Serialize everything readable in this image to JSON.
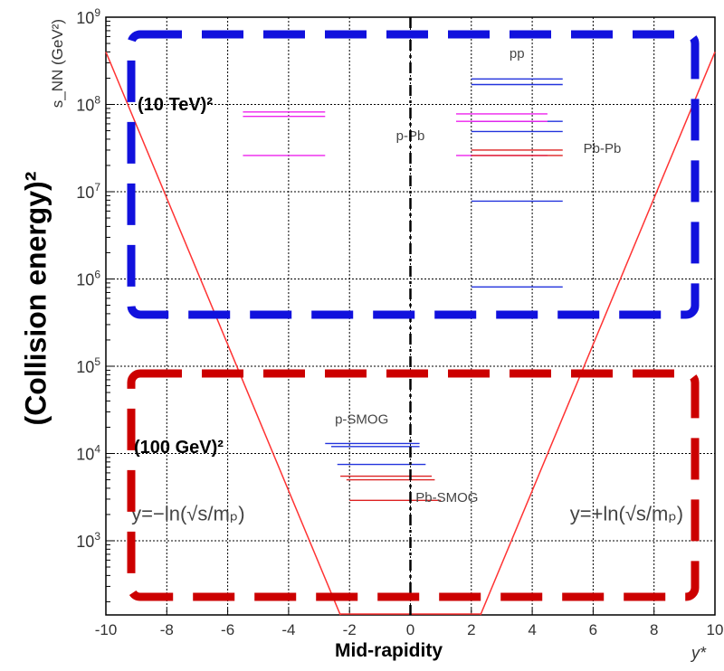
{
  "chart_data": {
    "type": "line",
    "title": "",
    "xlabel": "y*",
    "ylabel": "s_NN (GeV²)",
    "xlim": [
      -10,
      10
    ],
    "ylim_log10": [
      2.15,
      9
    ],
    "log_y": true,
    "grid": true,
    "x_ticks": [
      "-10",
      "-8",
      "-6",
      "-4",
      "-2",
      "0",
      "2",
      "4",
      "6",
      "8",
      "10"
    ],
    "y_ticks": [
      {
        "base": "10",
        "exp": "3",
        "value": 1000
      },
      {
        "base": "10",
        "exp": "4",
        "value": 10000
      },
      {
        "base": "10",
        "exp": "5",
        "value": 100000
      },
      {
        "base": "10",
        "exp": "6",
        "value": 1000000
      },
      {
        "base": "10",
        "exp": "7",
        "value": 10000000
      },
      {
        "base": "10",
        "exp": "8",
        "value": 100000000
      },
      {
        "base": "10",
        "exp": "9",
        "value": 1000000000
      }
    ],
    "boundary_lines": [
      {
        "label": "y=−ln(√s/mₚ)",
        "color": "#ff3333",
        "x": [
          -2.3,
          -10
        ],
        "y": [
          141,
          400000000.0
        ]
      },
      {
        "label": "y=+ln(√s/mₚ)",
        "color": "#ff3333",
        "x": [
          2.3,
          10
        ],
        "y": [
          141,
          400000000.0
        ]
      }
    ],
    "ranges": [
      {
        "group": "pp",
        "color": "#2233dd",
        "x": [
          2,
          5
        ],
        "y": 196000000.0
      },
      {
        "group": "pp",
        "color": "#2233dd",
        "x": [
          2,
          5
        ],
        "y": 169000000.0
      },
      {
        "group": "pp",
        "color": "#2233dd",
        "x": [
          2,
          5
        ],
        "y": 64000000.0
      },
      {
        "group": "pp",
        "color": "#2233dd",
        "x": [
          2,
          5
        ],
        "y": 49000000.0
      },
      {
        "group": "pp",
        "color": "#2233dd",
        "x": [
          2,
          5
        ],
        "y": 7800000.0
      },
      {
        "group": "pp",
        "color": "#2233dd",
        "x": [
          2,
          5
        ],
        "y": 810000.0
      },
      {
        "group": "p-Pb",
        "color": "#ee22ee",
        "x": [
          -5.5,
          -2.8
        ],
        "y": 82000000.0
      },
      {
        "group": "p-Pb",
        "color": "#ee22ee",
        "x": [
          -5.5,
          -2.8
        ],
        "y": 73000000.0
      },
      {
        "group": "p-Pb",
        "color": "#ee22ee",
        "x": [
          -5.5,
          -2.8
        ],
        "y": 26000000.0
      },
      {
        "group": "p-Pb",
        "color": "#ee22ee",
        "x": [
          1.5,
          4.5
        ],
        "y": 78000000.0
      },
      {
        "group": "p-Pb",
        "color": "#ee22ee",
        "x": [
          1.5,
          4.5
        ],
        "y": 64000000.0
      },
      {
        "group": "p-Pb",
        "color": "#ee22ee",
        "x": [
          1.5,
          4.5
        ],
        "y": 26000000.0
      },
      {
        "group": "Pb-Pb",
        "color": "#dd2222",
        "x": [
          2,
          5
        ],
        "y": 30000000.0
      },
      {
        "group": "Pb-Pb",
        "color": "#dd2222",
        "x": [
          2,
          5
        ],
        "y": 26000000.0
      },
      {
        "group": "p-SMOG",
        "color": "#2233dd",
        "x": [
          -2.8,
          0.3
        ],
        "y": 13000.0
      },
      {
        "group": "p-SMOG",
        "color": "#2233dd",
        "x": [
          -2.6,
          0.3
        ],
        "y": 12000.0
      },
      {
        "group": "p-SMOG",
        "color": "#2233dd",
        "x": [
          -2.4,
          0.5
        ],
        "y": 7500.0
      },
      {
        "group": "Pb-SMOG",
        "color": "#dd2222",
        "x": [
          -2.3,
          0.7
        ],
        "y": 5500.0
      },
      {
        "group": "Pb-SMOG",
        "color": "#dd2222",
        "x": [
          -2.1,
          0.8
        ],
        "y": 5000.0
      },
      {
        "group": "Pb-SMOG",
        "color": "#dd2222",
        "x": [
          -2,
          1
        ],
        "y": 2900.0
      }
    ],
    "annotations": [
      {
        "id": "pp",
        "text": "pp",
        "x": 3.5,
        "y": 340000000.0
      },
      {
        "id": "ppb",
        "text": "p-Pb",
        "x": 0,
        "y": 39000000.0
      },
      {
        "id": "pbpb",
        "text": "Pb-Pb",
        "x": 6.3,
        "y": 28000000.0
      },
      {
        "id": "psmog",
        "text": "p-SMOG",
        "x": -1.6,
        "y": 22000.0
      },
      {
        "id": "pbsmog",
        "text": "Pb-SMOG",
        "x": 1.2,
        "y": 2800.0
      },
      {
        "id": "yneg",
        "text": "y=−ln(√s/mₚ)",
        "x": -7.3,
        "y": 1700.0
      },
      {
        "id": "ypos",
        "text": "y=+ln(√s/mₚ)",
        "x": 7.1,
        "y": 1700.0
      }
    ]
  },
  "overlay": {
    "y_axis_caption": "(Collision energy)²",
    "x_axis_caption": "Mid-rapidity",
    "label_10tev": "(10 TeV)²",
    "label_100gev": "(100 GeV)²",
    "colors": {
      "high_energy_box": "#1111dd",
      "fixed_target_box": "#cc0000",
      "midline": "#000000"
    }
  }
}
